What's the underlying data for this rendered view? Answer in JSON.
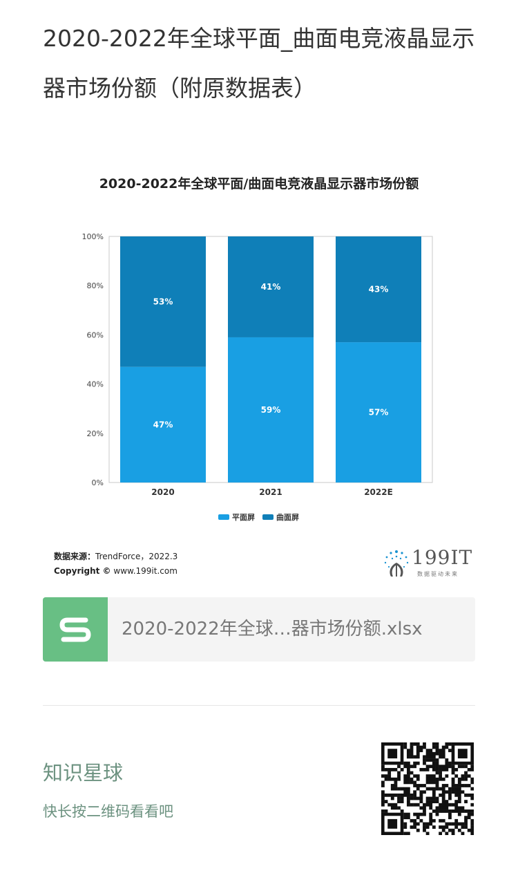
{
  "article": {
    "title": "2020-2022年全球平面_曲面电竞液晶显示器市场份额（附原数据表）"
  },
  "chart_data": {
    "type": "bar",
    "stacked": true,
    "title": "2020-2022年全球平面/曲面电竞液晶显示器市场份额",
    "categories": [
      "2020",
      "2021",
      "2022E"
    ],
    "series": [
      {
        "name": "平面屏",
        "values": [
          47,
          59,
          57
        ],
        "labels": [
          "47%",
          "59%",
          "57%"
        ],
        "color": "#199fe3"
      },
      {
        "name": "曲面屏",
        "values": [
          53,
          41,
          43
        ],
        "labels": [
          "53%",
          "41%",
          "43%"
        ],
        "color": "#0f7fb8"
      }
    ],
    "yticks": [
      "0%",
      "20%",
      "40%",
      "60%",
      "80%",
      "100%"
    ],
    "ylim": [
      0,
      100
    ],
    "legend_position": "bottom",
    "grid": false
  },
  "source": {
    "label": "数据来源：",
    "value": "TrendForce，2022.3",
    "copyright_label": "Copyright ©",
    "copyright_value": "www.199it.com"
  },
  "logo": {
    "text": "199IT",
    "slogan": "数据驱动未来"
  },
  "file": {
    "icon": "spreadsheet-s-icon",
    "name": "2020-2022年全球…器市场份额.xlsx"
  },
  "knowledge_planet": {
    "title": "知识星球",
    "subtitle": "快长按二维码看看吧",
    "qr_icon": "qr-code-icon"
  }
}
